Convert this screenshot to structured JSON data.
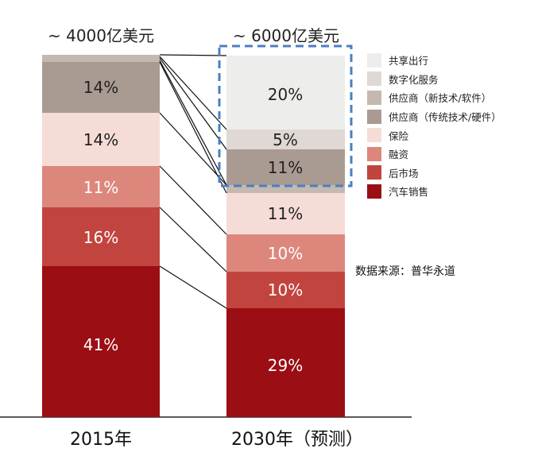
{
  "chart_data": {
    "type": "bar",
    "stacked": true,
    "categories": [
      "2015年",
      "2030年（预测）"
    ],
    "totals": [
      "~ 4000亿美元",
      "~ 6000亿美元"
    ],
    "series": [
      {
        "name": "汽车销售",
        "color": "#9b0e14",
        "values": [
          41,
          29
        ]
      },
      {
        "name": "后市场",
        "color": "#c2443e",
        "values": [
          16,
          10
        ]
      },
      {
        "name": "融资",
        "color": "#dd877c",
        "values": [
          11,
          10
        ]
      },
      {
        "name": "保险",
        "color": "#f6dcd7",
        "values": [
          14,
          11
        ]
      },
      {
        "name": "供应商（传统技术/硬件）",
        "color": "#aa9b92",
        "values": [
          14,
          11
        ]
      },
      {
        "name": "供应商（新技术/软件）",
        "color": "#c4b8b1",
        "values": [
          0,
          0
        ]
      },
      {
        "name": "数字化服务",
        "color": "#dfd8d5",
        "values": [
          0,
          5
        ]
      },
      {
        "name": "共享出行",
        "color": "#ededec",
        "values": [
          0,
          20
        ]
      }
    ],
    "legend_position": "right",
    "highlight_note": "dashed box around new segments of 2030 bar"
  },
  "legend": [
    {
      "label": "共享出行",
      "color": "#ededec"
    },
    {
      "label": "数字化服务",
      "color": "#dfd8d5"
    },
    {
      "label": "供应商（新技术/软件）",
      "color": "#c4b8b1"
    },
    {
      "label": "供应商（传统技术/硬件）",
      "color": "#aa9b92"
    },
    {
      "label": "保险",
      "color": "#f6dcd7"
    },
    {
      "label": "融资",
      "color": "#dd877c"
    },
    {
      "label": "后市场",
      "color": "#c2443e"
    },
    {
      "label": "汽车销售",
      "color": "#9b0e14"
    }
  ],
  "source": "数据来源：普华永道",
  "bars": {
    "left": {
      "category": "2015年",
      "total": "~ 4000亿美元",
      "segments": [
        {
          "label": "",
          "color": "#c4b8b1"
        },
        {
          "label": "14%",
          "color": "#aa9b92"
        },
        {
          "label": "14%",
          "color": "#f6dcd7"
        },
        {
          "label": "11%",
          "color": "#dd877c"
        },
        {
          "label": "16%",
          "color": "#c2443e"
        },
        {
          "label": "41%",
          "color": "#9b0e14"
        }
      ]
    },
    "right": {
      "category": "2030年（预测）",
      "total": "~ 6000亿美元",
      "segments": [
        {
          "label": "20%",
          "color": "#ededec"
        },
        {
          "label": "5%",
          "color": "#dfd8d5"
        },
        {
          "label": "11%",
          "color": "#aa9b92"
        },
        {
          "label": "",
          "color": "#c4b8b1"
        },
        {
          "label": "11%",
          "color": "#f6dcd7"
        },
        {
          "label": "10%",
          "color": "#dd877c"
        },
        {
          "label": "10%",
          "color": "#c2443e"
        },
        {
          "label": "29%",
          "color": "#9b0e14"
        }
      ]
    }
  }
}
